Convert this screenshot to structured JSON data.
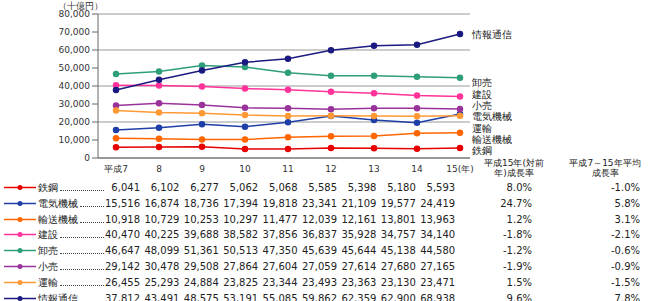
{
  "chart_data": {
    "type": "line",
    "y_label": "（十億円）",
    "categories": [
      "平成7",
      "8",
      "9",
      "10",
      "11",
      "12",
      "13",
      "14",
      "15(年)"
    ],
    "ylim": [
      0,
      80000
    ],
    "yticks": [
      0,
      {
        "value": 10000,
        "label": "10,000"
      },
      {
        "value": 20000,
        "label": "20,000"
      },
      {
        "value": 30000,
        "label": "30,000"
      },
      {
        "value": 40000,
        "label": "40,000"
      },
      {
        "value": 50000,
        "label": "50,000"
      },
      {
        "value": 60000,
        "label": "60,000"
      },
      {
        "value": 70000,
        "label": "70,000"
      },
      {
        "value": 80000,
        "label": "80,000"
      }
    ],
    "grid": true,
    "marker": "circle",
    "table_headers": [
      "平成15年(対前年)成長率",
      "平成7～15年平均成長率"
    ],
    "series": [
      {
        "name": "鉄鋼",
        "color": "#e60000",
        "values": [
          6041,
          6102,
          6277,
          5062,
          5068,
          5585,
          5398,
          5180,
          5593
        ],
        "growth_yoy": {
          "value": 8.0,
          "label": "8.0%"
        },
        "growth_avg": {
          "value": -1.0,
          "label": "-1.0%"
        }
      },
      {
        "name": "電気機械",
        "color": "#1f3fa8",
        "values": [
          15516,
          16874,
          18736,
          17394,
          19818,
          23341,
          21109,
          19577,
          24419
        ],
        "growth_yoy": {
          "value": 24.7,
          "label": "24.7%"
        },
        "growth_avg": {
          "value": 5.8,
          "label": "5.8%"
        }
      },
      {
        "name": "輸送機械",
        "color": "#ff6600",
        "values": [
          10918,
          10729,
          10253,
          10297,
          11477,
          12039,
          12161,
          13801,
          13963
        ],
        "growth_yoy": {
          "value": 1.2,
          "label": "1.2%"
        },
        "growth_avg": {
          "value": 3.1,
          "label": "3.1%"
        }
      },
      {
        "name": "建設",
        "color": "#ff3399",
        "values": [
          40470,
          40225,
          39688,
          38582,
          37856,
          36837,
          35928,
          34757,
          34140
        ],
        "growth_yoy": {
          "value": -1.8,
          "label": "-1.8%"
        },
        "growth_avg": {
          "value": -2.1,
          "label": "-2.1%"
        }
      },
      {
        "name": "卸売",
        "color": "#2e9e7a",
        "values": [
          46647,
          48099,
          51361,
          50513,
          47350,
          45639,
          45644,
          45138,
          44580
        ],
        "growth_yoy": {
          "value": -1.2,
          "label": "-1.2%"
        },
        "growth_avg": {
          "value": -0.6,
          "label": "-0.6%"
        }
      },
      {
        "name": "小売",
        "color": "#993399",
        "values": [
          29142,
          30478,
          29508,
          27864,
          27604,
          27059,
          27614,
          27680,
          27165
        ],
        "growth_yoy": {
          "value": -1.9,
          "label": "-1.9%"
        },
        "growth_avg": {
          "value": -0.9,
          "label": "-0.9%"
        }
      },
      {
        "name": "運輸",
        "color": "#ff9933",
        "values": [
          26455,
          25293,
          24884,
          23825,
          23344,
          23493,
          23363,
          23130,
          23471
        ],
        "growth_yoy": {
          "value": 1.5,
          "label": "1.5%"
        },
        "growth_avg": {
          "value": -1.5,
          "label": "-1.5%"
        }
      },
      {
        "name": "情報通信",
        "color": "#1a1a80",
        "values": [
          37812,
          43491,
          48575,
          53191,
          55085,
          59862,
          62359,
          62900,
          68938
        ],
        "growth_yoy": {
          "value": 9.6,
          "label": "9.6%"
        },
        "growth_avg": {
          "value": 7.8,
          "label": "7.8%"
        }
      }
    ]
  }
}
